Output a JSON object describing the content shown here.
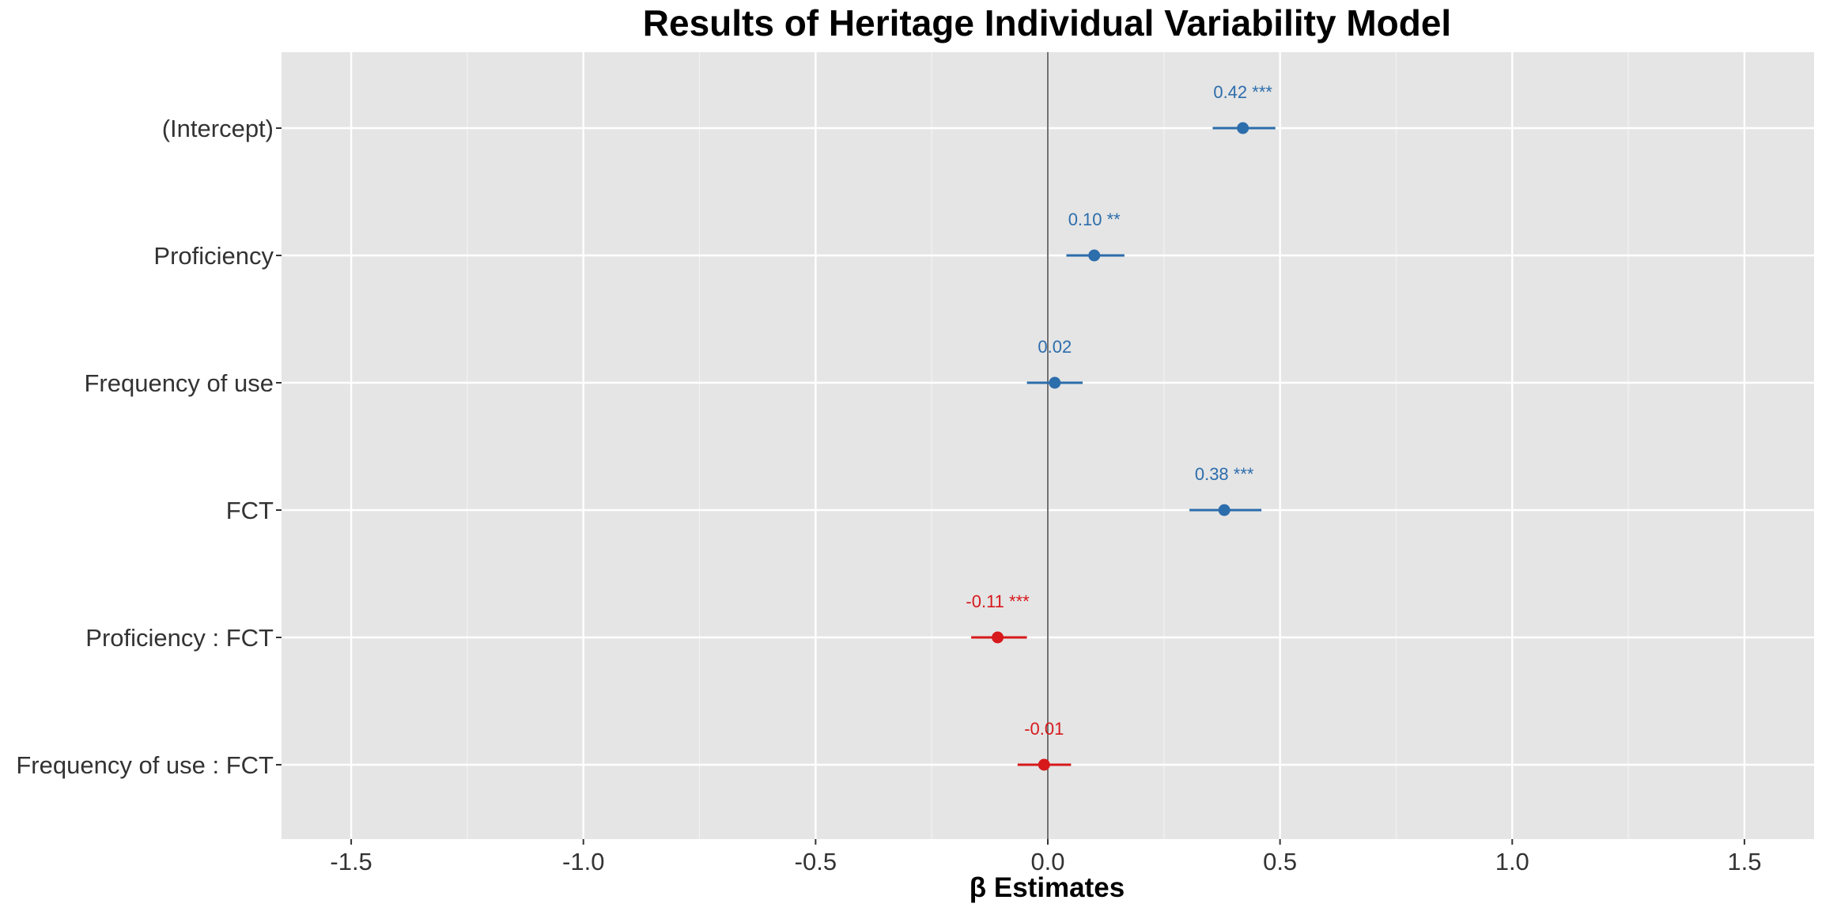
{
  "chart_data": {
    "type": "forest",
    "title": "Results of Heritage Individual Variability Model",
    "xlabel": "β Estimates",
    "ylabel": "",
    "xlim": [
      -1.65,
      1.65
    ],
    "x_ticks": [
      "-1.5",
      "-1.0",
      "-0.5",
      "0.0",
      "0.5",
      "1.0",
      "1.5"
    ],
    "grid": true,
    "reference_line": 0,
    "colors": {
      "positive": "#2c6dac",
      "negative": "#d7191c",
      "panel": "#e5e5e5",
      "grid": "#ffffff",
      "reference": "#333333"
    },
    "terms": [
      {
        "name": "(Intercept)",
        "estimate": 0.42,
        "ci_low": 0.355,
        "ci_high": 0.49,
        "label": "0.42 ***"
      },
      {
        "name": "Proficiency",
        "estimate": 0.1,
        "ci_low": 0.04,
        "ci_high": 0.165,
        "label": "0.10 **"
      },
      {
        "name": "Frequency of use",
        "estimate": 0.015,
        "ci_low": -0.045,
        "ci_high": 0.075,
        "label": "0.02"
      },
      {
        "name": "FCT",
        "estimate": 0.38,
        "ci_low": 0.305,
        "ci_high": 0.46,
        "label": "0.38 ***"
      },
      {
        "name": "Proficiency : FCT",
        "estimate": -0.108,
        "ci_low": -0.165,
        "ci_high": -0.045,
        "label": "-0.11 ***"
      },
      {
        "name": "Frequency of use : FCT",
        "estimate": -0.008,
        "ci_low": -0.065,
        "ci_high": 0.05,
        "label": "-0.01"
      }
    ]
  }
}
